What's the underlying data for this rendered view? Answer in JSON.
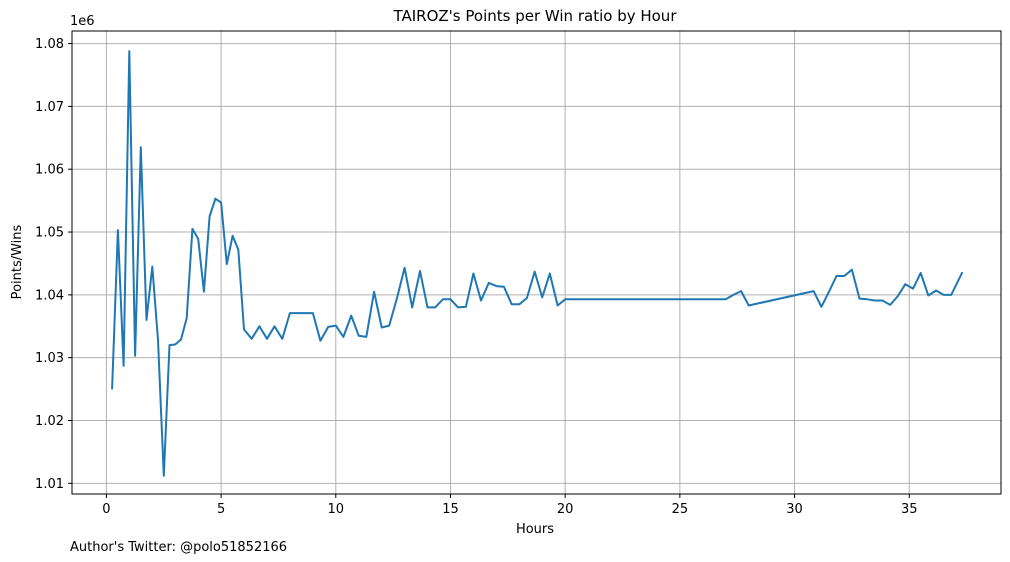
{
  "chart_data": {
    "type": "line",
    "title": "TAIROZ's Points per Win ratio by Hour",
    "xlabel": "Hours",
    "ylabel": "Points/Wins",
    "y_offset_label": "1e6",
    "footer": "Author's Twitter: @polo51852166",
    "xlim": [
      -1.5,
      39.0
    ],
    "ylim": [
      1.0083,
      1.082
    ],
    "x_ticks": [
      0,
      5,
      10,
      15,
      20,
      25,
      30,
      35
    ],
    "y_ticks": [
      1.01,
      1.02,
      1.03,
      1.04,
      1.05,
      1.06,
      1.07,
      1.08
    ],
    "y_tick_scale": 1000000,
    "grid": true,
    "line_color": "#1f77b4",
    "series": [
      {
        "x": [
          0.25,
          0.5,
          0.75,
          1.0,
          1.25,
          1.5,
          1.75,
          2.0,
          2.25,
          2.5,
          2.75,
          3.0,
          3.25,
          3.5,
          3.75,
          4.0,
          4.25,
          4.5,
          4.75,
          5.0,
          5.25,
          5.5,
          5.75,
          6.0,
          6.33,
          6.67,
          7.0,
          7.33,
          7.67,
          8.0,
          8.5,
          9.0,
          9.33,
          9.67,
          10.0,
          10.33,
          10.67,
          11.0,
          11.33,
          11.67,
          12.0,
          12.33,
          12.67,
          13.0,
          13.33,
          13.67,
          14.0,
          14.33,
          14.67,
          15.0,
          15.33,
          15.67,
          16.0,
          16.33,
          16.67,
          17.0,
          17.33,
          17.67,
          18.0,
          18.33,
          18.67,
          19.0,
          19.33,
          19.67,
          20.0,
          24.33,
          27.0,
          27.33,
          27.67,
          28.0,
          30.83,
          31.17,
          31.5,
          31.83,
          32.17,
          32.5,
          32.83,
          33.17,
          33.5,
          33.83,
          34.17,
          34.5,
          34.83,
          35.17,
          35.5,
          35.83,
          36.17,
          36.5,
          36.83,
          37.3
        ],
        "y": [
          1.0251,
          1.0503,
          1.0287,
          1.0788,
          1.0303,
          1.0635,
          1.036,
          1.0445,
          1.0328,
          1.0112,
          1.032,
          1.0321,
          1.0329,
          1.0363,
          1.0505,
          1.0489,
          1.0405,
          1.0525,
          1.0553,
          1.0547,
          1.0449,
          1.0494,
          1.0472,
          1.0345,
          1.033,
          1.035,
          1.033,
          1.035,
          1.033,
          1.0371,
          1.0371,
          1.0371,
          1.0327,
          1.0349,
          1.0351,
          1.0333,
          1.0367,
          1.0335,
          1.0333,
          1.0405,
          1.0348,
          1.0351,
          1.0395,
          1.0443,
          1.038,
          1.0438,
          1.038,
          1.038,
          1.0393,
          1.0393,
          1.038,
          1.0381,
          1.0434,
          1.0391,
          1.0419,
          1.0414,
          1.0413,
          1.0385,
          1.0385,
          1.0395,
          1.0437,
          1.0396,
          1.0434,
          1.0383,
          1.0393,
          1.0393,
          1.0393,
          1.04,
          1.0406,
          1.0383,
          1.0406,
          1.0381,
          1.0405,
          1.043,
          1.043,
          1.044,
          1.0394,
          1.0393,
          1.0391,
          1.0391,
          1.0384,
          1.0398,
          1.0417,
          1.041,
          1.0435,
          1.0399,
          1.0407,
          1.04,
          1.04,
          1.0435
        ]
      }
    ]
  }
}
